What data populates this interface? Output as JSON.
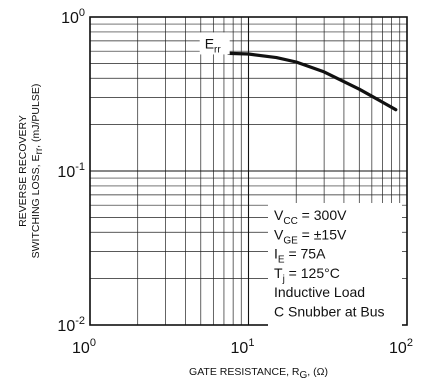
{
  "chart_data": {
    "type": "line",
    "xscale": "log",
    "yscale": "log",
    "xlim": [
      1,
      100
    ],
    "ylim": [
      0.01,
      1
    ],
    "grid": true,
    "xlabel": {
      "main": "GATE RESISTANCE, R",
      "sub": "G",
      "tail": ", (Ω)"
    },
    "ylabel": {
      "line1": "REVERSE RECOVERY",
      "line2_main": "SWITCHING LOSS, E",
      "line2_sub": "rr",
      "line2_tail": ", (mJ/PULSE)"
    },
    "x_ticks": [
      {
        "base": "10",
        "exp": "0",
        "value": 1
      },
      {
        "base": "10",
        "exp": "1",
        "value": 10
      },
      {
        "base": "10",
        "exp": "2",
        "value": 100
      }
    ],
    "y_ticks": [
      {
        "base": "10",
        "exp": "0",
        "value": 1
      },
      {
        "base": "10",
        "exp": "-1",
        "value": 0.1
      },
      {
        "base": "10",
        "exp": "-2",
        "value": 0.01
      }
    ],
    "series": [
      {
        "name_main": "E",
        "name_sub": "rr",
        "x": [
          7.5,
          10,
          15,
          20,
          30,
          50,
          70,
          85
        ],
        "y": [
          0.58,
          0.575,
          0.545,
          0.51,
          0.44,
          0.34,
          0.28,
          0.25
        ]
      }
    ],
    "conditions": [
      {
        "main": "V",
        "sub": "CC",
        "tail": " = 300V"
      },
      {
        "main": "V",
        "sub": "GE",
        "tail": " = ±15V"
      },
      {
        "main": "I",
        "sub": "E",
        "tail": " = 75A"
      },
      {
        "main": "T",
        "sub": "j",
        "tail": " = 125°C"
      },
      {
        "main": "Inductive Load",
        "sub": "",
        "tail": ""
      },
      {
        "main": "C Snubber at Bus",
        "sub": "",
        "tail": ""
      }
    ]
  }
}
